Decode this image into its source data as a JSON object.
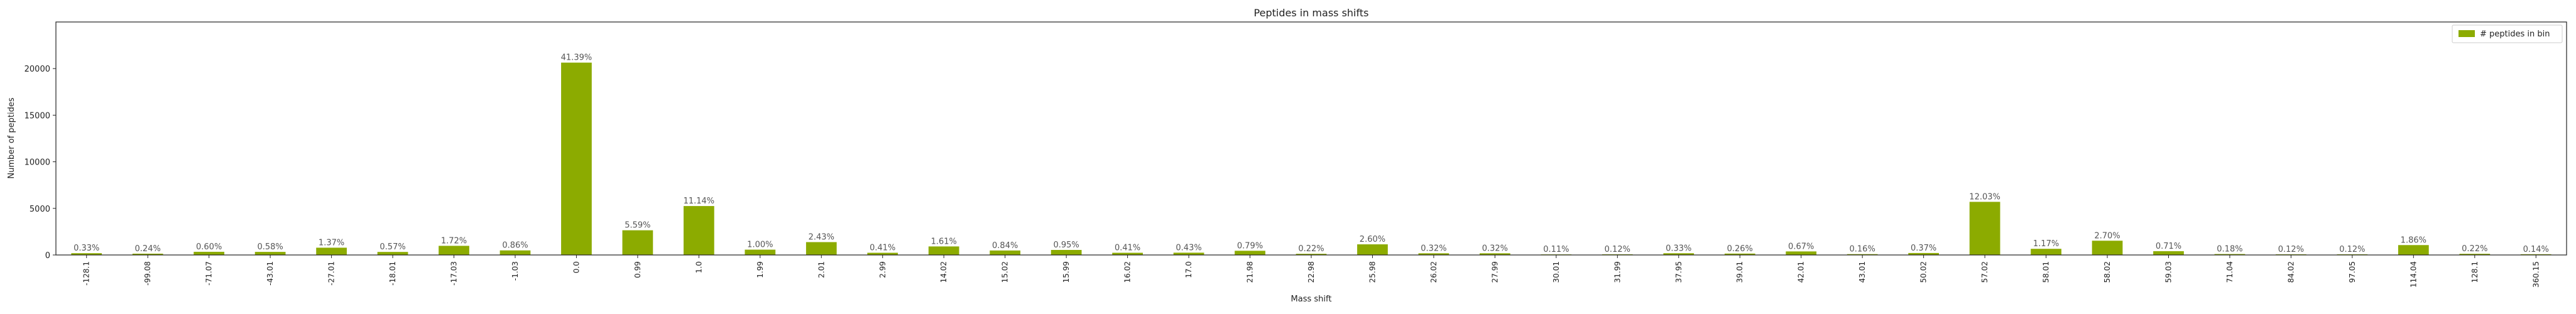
{
  "chart_data": {
    "type": "bar",
    "title": "Peptides in mass shifts",
    "xlabel": "Mass shift",
    "ylabel": "Number of peptides",
    "ylim": [
      0,
      25000
    ],
    "yticks": [
      0,
      5000,
      10000,
      15000,
      20000
    ],
    "ytick_labels": [
      "0",
      "5000",
      "10000",
      "15000",
      "20000"
    ],
    "grid": false,
    "legend_position": "top-right",
    "bar_color": "#8cab00",
    "series": [
      {
        "name": "# peptides in bin",
        "categories": [
          "-128.1",
          "-99.08",
          "-71.07",
          "-43.01",
          "-27.01",
          "-18.01",
          "-17.03",
          "-1.03",
          "0.0",
          "0.99",
          "1.0",
          "1.99",
          "2.01",
          "2.99",
          "14.02",
          "15.02",
          "15.99",
          "16.02",
          "17.0",
          "21.98",
          "22.98",
          "25.98",
          "26.02",
          "27.99",
          "30.01",
          "31.99",
          "37.95",
          "39.01",
          "42.01",
          "43.01",
          "50.02",
          "57.02",
          "58.01",
          "58.02",
          "59.03",
          "71.04",
          "84.02",
          "97.05",
          "114.04",
          "128.1",
          "360.15"
        ],
        "values": [
          190,
          140,
          340,
          330,
          780,
          325,
          980,
          490,
          20640,
          2650,
          5250,
          570,
          1380,
          235,
          915,
          480,
          540,
          235,
          245,
          450,
          125,
          1140,
          180,
          180,
          60,
          70,
          185,
          150,
          380,
          90,
          210,
          5700,
          660,
          1530,
          405,
          100,
          70,
          70,
          1060,
          125,
          80
        ],
        "labels": [
          "0.33%",
          "0.24%",
          "0.60%",
          "0.58%",
          "1.37%",
          "0.57%",
          "1.72%",
          "0.86%",
          "41.39%",
          "5.59%",
          "11.14%",
          "1.00%",
          "2.43%",
          "0.41%",
          "1.61%",
          "0.84%",
          "0.95%",
          "0.41%",
          "0.43%",
          "0.79%",
          "0.22%",
          "2.60%",
          "0.32%",
          "0.32%",
          "0.11%",
          "0.12%",
          "0.33%",
          "0.26%",
          "0.67%",
          "0.16%",
          "0.37%",
          "12.03%",
          "1.17%",
          "2.70%",
          "0.71%",
          "0.18%",
          "0.12%",
          "0.12%",
          "1.86%",
          "0.22%",
          "0.14%"
        ]
      }
    ]
  }
}
